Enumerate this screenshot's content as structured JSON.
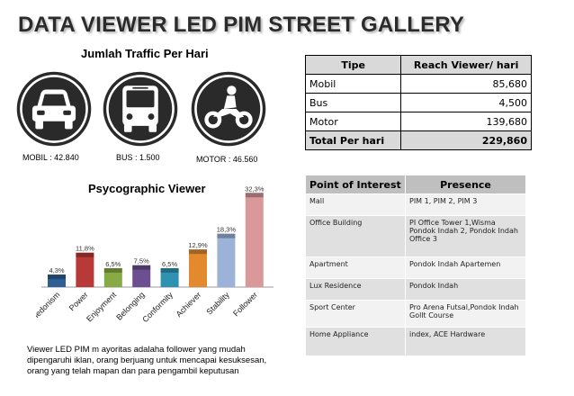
{
  "title": "DATA VIEWER LED PIM STREET GALLERY",
  "traffic": {
    "title": "Jumlah Traffic Per Hari",
    "vehicles": [
      {
        "icon": "car-icon",
        "label": "MOBIL : 42.840"
      },
      {
        "icon": "bus-icon",
        "label": "BUS : 1.500"
      },
      {
        "icon": "motorcycle-icon",
        "label": "MOTOR : 46.560"
      }
    ]
  },
  "reach_table": {
    "headers": [
      "Tipe",
      "Reach Viewer/ hari"
    ],
    "rows": [
      {
        "tipe": "Mobil",
        "reach": "85,680"
      },
      {
        "tipe": "Bus",
        "reach": "4,500"
      },
      {
        "tipe": "Motor",
        "reach": "139,680"
      }
    ],
    "total": {
      "tipe": "Total Per hari",
      "reach": "229,860"
    }
  },
  "chart_data": {
    "type": "bar",
    "title": "Psycographic Viewer",
    "categories": [
      "Hedonism",
      "Power",
      "Enjoyment",
      "Belonging",
      "Conformity",
      "Achiever",
      "Stability",
      "Follower"
    ],
    "values": [
      4.3,
      11.8,
      6.5,
      7.5,
      6.5,
      12.9,
      18.3,
      32.3
    ],
    "value_labels": [
      "4,3%",
      "11,8%",
      "6,5%",
      "7,5%",
      "6,5%",
      "12,9%",
      "18,3%",
      "32,3%"
    ],
    "colors": [
      "#2e5f95",
      "#b83a38",
      "#88aa44",
      "#6b4f91",
      "#2e93b0",
      "#e38a2e",
      "#9db2d8",
      "#d9989a"
    ],
    "ylim": [
      0,
      33
    ],
    "grid": false
  },
  "description": "Viewer LED PIM m ayoritas adalaha follower yang mudah dipengaruhi iklan, orang berjuang untuk mencapai kesuksesan, orang yang telah mapan dan para pengambil keputusan",
  "poi_table": {
    "headers": [
      "Point of Interest",
      "Presence"
    ],
    "rows": [
      {
        "point": "Mall",
        "presence": "PIM 1, PIM 2, PIM 3"
      },
      {
        "point": "Office Building",
        "presence": "PI Office Tower 1,Wisma Pondok Indah 2, Pondok Indah Office 3"
      },
      {
        "point": "Apartment",
        "presence": "Pondok Indah Apartemen"
      },
      {
        "point": "Lux Residence",
        "presence": "Pondok Indah"
      },
      {
        "point": "Sport Center",
        "presence": "Pro Arena Futsal,Pondok Indah Gollt Course"
      },
      {
        "point": "Home Appliance",
        "presence": "index, ACE Hardware"
      }
    ]
  }
}
